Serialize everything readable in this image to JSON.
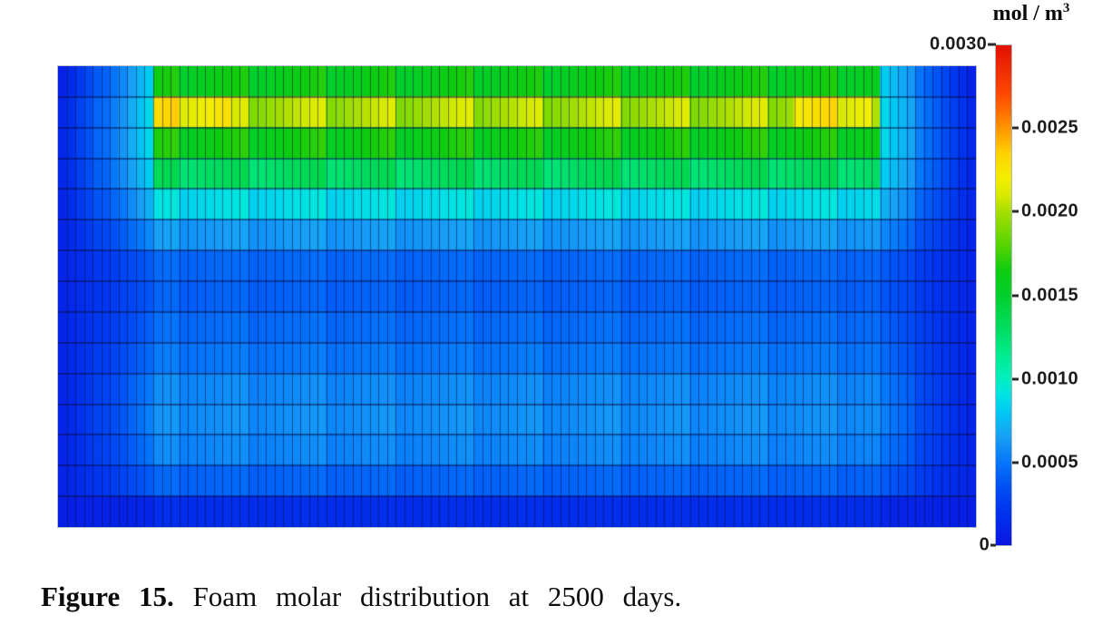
{
  "figure": {
    "caption": {
      "label": "Figure 15.",
      "text": "Foam molar distribution at 2500 days."
    }
  },
  "colorbar": {
    "title_main": "mol / m",
    "title_exponent": "3",
    "max_label": "0.0030",
    "min_label": "0",
    "min": 0,
    "max": 0.003,
    "tick_labels": [
      {
        "text": "0.0025",
        "value": 0.0025
      },
      {
        "text": "0.0020",
        "value": 0.002
      },
      {
        "text": "0.0015",
        "value": 0.0015
      },
      {
        "text": "0.0010",
        "value": 0.001
      },
      {
        "text": "0.0005",
        "value": 0.0005
      }
    ]
  },
  "chart_data": {
    "type": "heatmap",
    "title": "Foam molar distribution at 2500 days",
    "units": "mol / m3",
    "value_range": [
      0,
      0.003
    ],
    "grid": {
      "rows": 15,
      "cols": 106
    },
    "layout": {
      "ramp_cols": 11,
      "column_jitter_amp": 0.12
    },
    "colormap_stops": [
      [
        0.0,
        "#0A16E1"
      ],
      [
        0.0002,
        "#0033EE"
      ],
      [
        0.00035,
        "#0050F5"
      ],
      [
        0.0005,
        "#0577FA"
      ],
      [
        0.00065,
        "#18A0F5"
      ],
      [
        0.0008,
        "#00C8F2"
      ],
      [
        0.0009,
        "#00E2E4"
      ],
      [
        0.001,
        "#00F0BE"
      ],
      [
        0.00115,
        "#00EB8C"
      ],
      [
        0.0013,
        "#00DC5F"
      ],
      [
        0.0015,
        "#00D02D"
      ],
      [
        0.00165,
        "#0ECC0E"
      ],
      [
        0.0018,
        "#55D400"
      ],
      [
        0.002,
        "#A5DE00"
      ],
      [
        0.0021,
        "#D9EA00"
      ],
      [
        0.0022,
        "#F2EE00"
      ],
      [
        0.00235,
        "#FFD200"
      ],
      [
        0.0025,
        "#FF9600"
      ],
      [
        0.0027,
        "#FF4B00"
      ],
      [
        0.003,
        "#E10F00"
      ]
    ],
    "row_profiles": [
      {
        "row": 1,
        "edge": 8e-05,
        "shoulder": 0.0008,
        "interior": 0.0016
      },
      {
        "row": 2,
        "edge": 0.00012,
        "shoulder": 0.00085,
        "interior": 0.00202
      },
      {
        "row": 3,
        "edge": 0.00012,
        "shoulder": 0.00085,
        "interior": 0.00163
      },
      {
        "row": 4,
        "edge": 0.00012,
        "shoulder": 0.0008,
        "interior": 0.0013
      },
      {
        "row": 5,
        "edge": 0.00011,
        "shoulder": 0.0007,
        "interior": 0.00088
      },
      {
        "row": 6,
        "edge": 0.0001,
        "shoulder": 0.00055,
        "interior": 0.00063
      },
      {
        "row": 7,
        "edge": 0.0001,
        "shoulder": 0.00038,
        "interior": 0.00044
      },
      {
        "row": 8,
        "edge": 0.0001,
        "shoulder": 0.00036,
        "interior": 0.00042
      },
      {
        "row": 9,
        "edge": 0.0001,
        "shoulder": 0.0004,
        "interior": 0.00046
      },
      {
        "row": 10,
        "edge": 0.0001,
        "shoulder": 0.00044,
        "interior": 0.0005
      },
      {
        "row": 11,
        "edge": 0.0001,
        "shoulder": 0.0005,
        "interior": 0.00057
      },
      {
        "row": 12,
        "edge": 0.0001,
        "shoulder": 0.00052,
        "interior": 0.00059
      },
      {
        "row": 13,
        "edge": 0.0001,
        "shoulder": 0.00048,
        "interior": 0.00056
      },
      {
        "row": 14,
        "edge": 9e-05,
        "shoulder": 0.00038,
        "interior": 0.00043
      },
      {
        "row": 15,
        "edge": 6e-05,
        "shoulder": 0.0001,
        "interior": 0.00016
      }
    ],
    "hot_zones": [
      {
        "row": 2,
        "col_start": 11,
        "col_end": 19,
        "value": 0.00223
      },
      {
        "row": 2,
        "col_start": 85,
        "col_end": 93,
        "value": 0.00223
      }
    ],
    "gridline_color": "rgba(5,12,70,0.5)"
  }
}
